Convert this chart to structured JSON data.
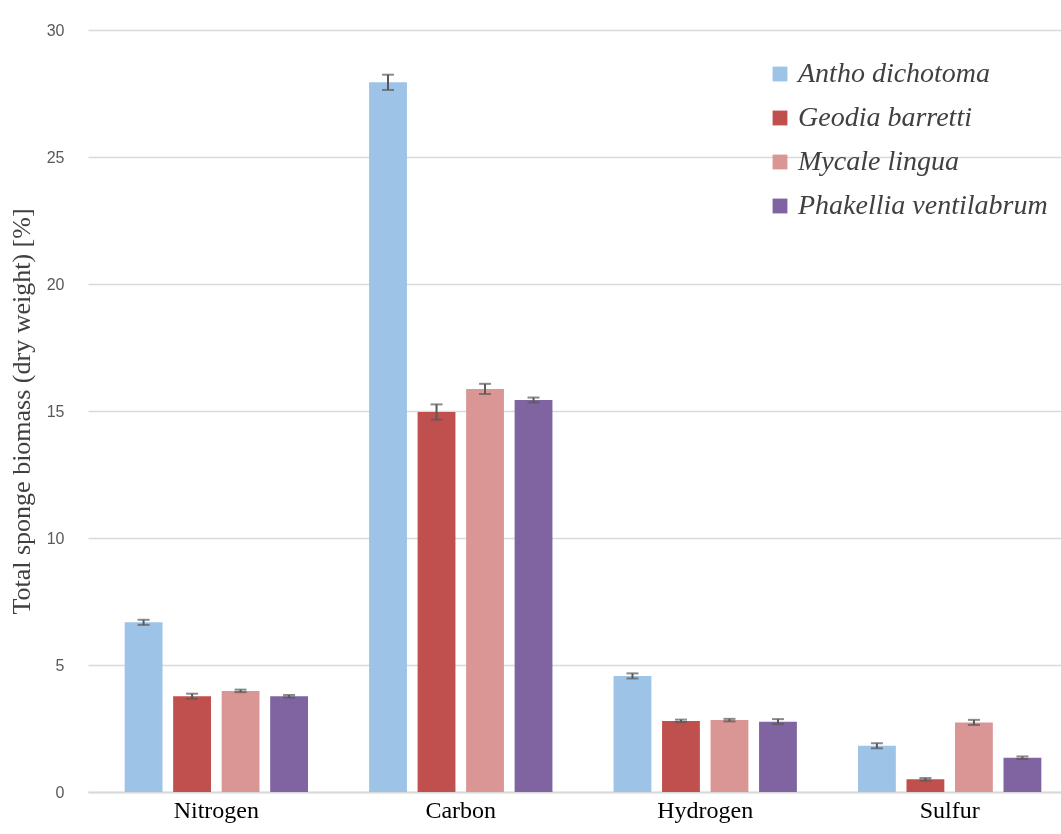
{
  "chart_data": {
    "type": "bar",
    "ylabel": "Total sponge biomass (dry weight) [%]",
    "categories": [
      "Nitrogen",
      "Carbon",
      "Hydrogen",
      "Sulfur"
    ],
    "series": [
      {
        "name": "Antho dichotoma",
        "color": "#9dc3e6",
        "values": [
          6.68,
          27.94,
          4.57,
          1.82
        ],
        "errors": [
          0.1,
          0.3,
          0.1,
          0.1
        ]
      },
      {
        "name": "Geodia barretti",
        "color": "#c0504d",
        "values": [
          3.77,
          14.96,
          2.8,
          0.5
        ],
        "errors": [
          0.1,
          0.3,
          0.05,
          0.05
        ]
      },
      {
        "name": "Mycale lingua",
        "color": "#da9694",
        "values": [
          3.98,
          15.87,
          2.83,
          2.74
        ],
        "errors": [
          0.05,
          0.2,
          0.05,
          0.1
        ]
      },
      {
        "name": "Phakellia ventilabrum",
        "color": "#8064a2",
        "values": [
          3.77,
          15.43,
          2.77,
          1.35
        ],
        "errors": [
          0.05,
          0.1,
          0.1,
          0.05
        ]
      }
    ],
    "ylim": [
      0,
      30
    ],
    "yticks": [
      0,
      5,
      10,
      15,
      20,
      25,
      30
    ],
    "grid": "y",
    "legend": "top right"
  }
}
